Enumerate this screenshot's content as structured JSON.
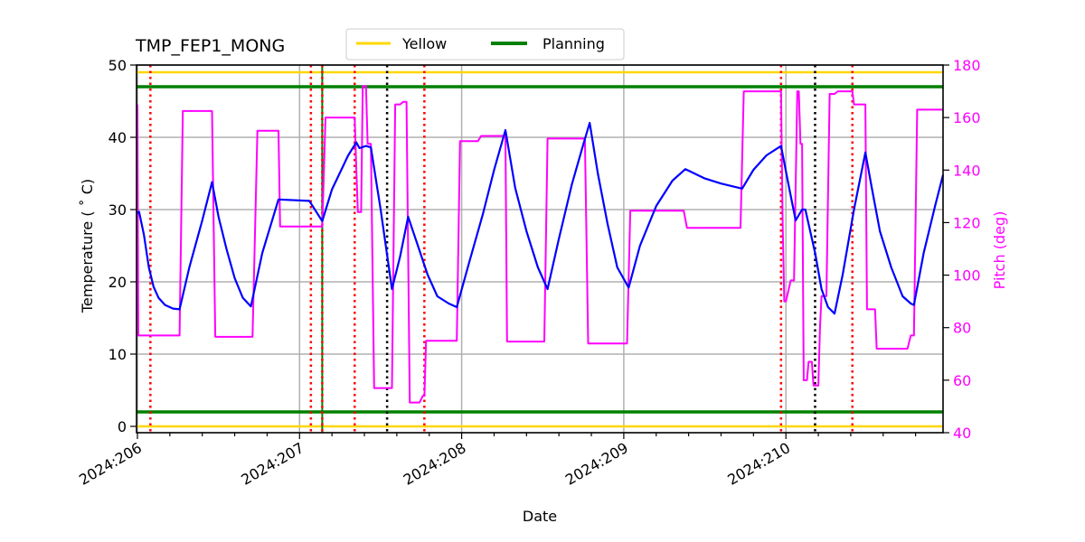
{
  "chart_data": {
    "type": "line",
    "title": "TMP_FEP1_MONG",
    "xlabel": "Date",
    "ylabel": "Temperature ($^\\circ$C)",
    "ylabel_display": "Temperature ( ˚ C)",
    "y2label": "Pitch (deg)",
    "xlim": [
      205.995,
      210.98
    ],
    "ylim": [
      -0.9,
      50
    ],
    "y2lim": [
      40,
      180
    ],
    "grid": true,
    "x_ticks": [
      "2024:206",
      "2024:207",
      "2024:208",
      "2024:209",
      "2024:210"
    ],
    "x_tick_values": [
      206,
      207,
      208,
      209,
      210
    ],
    "y_ticks": [
      0,
      10,
      20,
      30,
      40,
      50
    ],
    "y2_ticks": [
      40,
      60,
      80,
      100,
      120,
      140,
      160,
      180
    ],
    "legend": {
      "position": "top-center",
      "entries": [
        {
          "label": "Yellow",
          "color": "#ffd700"
        },
        {
          "label": "Planning",
          "color": "#008000"
        }
      ]
    },
    "limits": {
      "yellow": [
        0,
        49
      ],
      "planning": [
        2,
        47
      ]
    },
    "vertical_lines": {
      "red_dotted": [
        206.08,
        207.07,
        207.34,
        207.77,
        209.97,
        210.41
      ],
      "black_dotted": [
        207.54,
        210.18
      ],
      "green_solid": [
        207.14
      ]
    },
    "series": [
      {
        "name": "Temperature",
        "axis": "left",
        "color": "#0000ff",
        "points": [
          [
            206.0,
            29.5
          ],
          [
            206.01,
            29.7
          ],
          [
            206.04,
            26.5
          ],
          [
            206.07,
            22.0
          ],
          [
            206.1,
            19.3
          ],
          [
            206.13,
            17.8
          ],
          [
            206.17,
            16.8
          ],
          [
            206.22,
            16.3
          ],
          [
            206.26,
            16.2
          ],
          [
            206.32,
            22.0
          ],
          [
            206.4,
            28.5
          ],
          [
            206.46,
            33.8
          ],
          [
            206.5,
            29.0
          ],
          [
            206.55,
            24.5
          ],
          [
            206.6,
            20.5
          ],
          [
            206.65,
            17.8
          ],
          [
            206.7,
            16.6
          ],
          [
            206.77,
            24.0
          ],
          [
            206.87,
            31.4
          ],
          [
            207.06,
            31.2
          ],
          [
            207.14,
            28.4
          ],
          [
            207.2,
            32.8
          ],
          [
            207.3,
            37.5
          ],
          [
            207.35,
            39.3
          ],
          [
            207.37,
            38.5
          ],
          [
            207.41,
            38.8
          ],
          [
            207.44,
            38.6
          ],
          [
            207.5,
            30.0
          ],
          [
            207.57,
            19.0
          ],
          [
            207.62,
            23.5
          ],
          [
            207.67,
            29.0
          ],
          [
            207.73,
            25.0
          ],
          [
            207.79,
            21.0
          ],
          [
            207.85,
            18.0
          ],
          [
            207.92,
            17.0
          ],
          [
            207.97,
            16.5
          ],
          [
            208.05,
            23.0
          ],
          [
            208.13,
            29.3
          ],
          [
            208.2,
            35.5
          ],
          [
            208.27,
            41.0
          ],
          [
            208.33,
            33.0
          ],
          [
            208.4,
            27.0
          ],
          [
            208.47,
            22.0
          ],
          [
            208.53,
            19.0
          ],
          [
            208.6,
            26.0
          ],
          [
            208.68,
            33.5
          ],
          [
            208.75,
            39.0
          ],
          [
            208.79,
            42.0
          ],
          [
            208.84,
            35.0
          ],
          [
            208.9,
            28.0
          ],
          [
            208.96,
            22.0
          ],
          [
            209.03,
            19.2
          ],
          [
            209.1,
            25.0
          ],
          [
            209.2,
            30.5
          ],
          [
            209.3,
            34.0
          ],
          [
            209.38,
            35.6
          ],
          [
            209.5,
            34.3
          ],
          [
            209.6,
            33.6
          ],
          [
            209.73,
            32.9
          ],
          [
            209.8,
            35.5
          ],
          [
            209.88,
            37.5
          ],
          [
            209.97,
            38.8
          ],
          [
            210.02,
            33.0
          ],
          [
            210.06,
            28.5
          ],
          [
            210.1,
            30.0
          ],
          [
            210.12,
            30.0
          ],
          [
            210.18,
            24.0
          ],
          [
            210.22,
            19.0
          ],
          [
            210.26,
            16.5
          ],
          [
            210.3,
            15.6
          ],
          [
            210.35,
            21.0
          ],
          [
            210.42,
            30.0
          ],
          [
            210.46,
            34.5
          ],
          [
            210.49,
            37.9
          ],
          [
            210.53,
            33.0
          ],
          [
            210.58,
            27.0
          ],
          [
            210.65,
            22.0
          ],
          [
            210.72,
            18.0
          ],
          [
            210.77,
            17.0
          ],
          [
            210.79,
            16.8
          ],
          [
            210.85,
            24.0
          ],
          [
            210.92,
            30.5
          ],
          [
            210.98,
            34.8
          ]
        ]
      },
      {
        "name": "Pitch",
        "axis": "right",
        "color": "#ff00ff",
        "points": [
          [
            206.0,
            165.0
          ],
          [
            206.005,
            77.0
          ],
          [
            206.26,
            77.0
          ],
          [
            206.28,
            162.5
          ],
          [
            206.46,
            162.5
          ],
          [
            206.48,
            76.5
          ],
          [
            206.71,
            76.5
          ],
          [
            206.74,
            155.0
          ],
          [
            206.87,
            155.0
          ],
          [
            206.88,
            118.5
          ],
          [
            207.14,
            118.5
          ],
          [
            207.16,
            160.0
          ],
          [
            207.34,
            160.0
          ],
          [
            207.35,
            140.0
          ],
          [
            207.36,
            124.0
          ],
          [
            207.38,
            124.0
          ],
          [
            207.39,
            172.0
          ],
          [
            207.41,
            172.0
          ],
          [
            207.42,
            150.0
          ],
          [
            207.44,
            150.0
          ],
          [
            207.46,
            57.0
          ],
          [
            207.57,
            57.0
          ],
          [
            207.59,
            165.0
          ],
          [
            207.62,
            165.0
          ],
          [
            207.64,
            166.0
          ],
          [
            207.66,
            166.0
          ],
          [
            207.68,
            51.5
          ],
          [
            207.74,
            51.5
          ],
          [
            207.76,
            54.0
          ],
          [
            207.77,
            54.0
          ],
          [
            207.78,
            75.0
          ],
          [
            207.97,
            75.0
          ],
          [
            207.99,
            151.0
          ],
          [
            208.1,
            151.0
          ],
          [
            208.12,
            153.0
          ],
          [
            208.27,
            153.0
          ],
          [
            208.28,
            74.7
          ],
          [
            208.51,
            74.7
          ],
          [
            208.53,
            152.0
          ],
          [
            208.76,
            152.0
          ],
          [
            208.78,
            74.0
          ],
          [
            209.02,
            74.0
          ],
          [
            209.04,
            124.5
          ],
          [
            209.37,
            124.5
          ],
          [
            209.39,
            118.0
          ],
          [
            209.72,
            118.0
          ],
          [
            209.74,
            170.0
          ],
          [
            209.97,
            170.0
          ],
          [
            209.98,
            120.0
          ],
          [
            209.99,
            90.0
          ],
          [
            210.0,
            90.0
          ],
          [
            210.03,
            98.0
          ],
          [
            210.05,
            98.0
          ],
          [
            210.07,
            170.0
          ],
          [
            210.08,
            170.0
          ],
          [
            210.09,
            150.0
          ],
          [
            210.1,
            150.0
          ],
          [
            210.11,
            60.0
          ],
          [
            210.13,
            60.0
          ],
          [
            210.14,
            67.0
          ],
          [
            210.16,
            67.0
          ],
          [
            210.17,
            58.0
          ],
          [
            210.2,
            58.0
          ],
          [
            210.21,
            80.0
          ],
          [
            210.22,
            92.0
          ],
          [
            210.25,
            92.0
          ],
          [
            210.27,
            169.0
          ],
          [
            210.3,
            169.0
          ],
          [
            210.32,
            170.0
          ],
          [
            210.41,
            170.0
          ],
          [
            210.42,
            165.0
          ],
          [
            210.49,
            165.0
          ],
          [
            210.5,
            87.0
          ],
          [
            210.55,
            87.0
          ],
          [
            210.56,
            72.0
          ],
          [
            210.75,
            72.0
          ],
          [
            210.77,
            77.0
          ],
          [
            210.79,
            77.0
          ],
          [
            210.81,
            163.0
          ],
          [
            210.98,
            163.0
          ]
        ]
      }
    ]
  }
}
